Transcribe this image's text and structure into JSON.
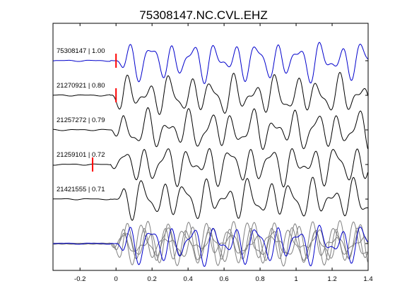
{
  "chart_data": {
    "type": "line",
    "title": "75308147.NC.CVL.EHZ",
    "xlim": [
      -0.35,
      1.4
    ],
    "xticks": [
      -0.2,
      0,
      0.2,
      0.4,
      0.6,
      0.8,
      1,
      1.2,
      1.4
    ],
    "xtick_labels": [
      "-0.2",
      "0",
      "0.2",
      "0.4",
      "0.6",
      "0.8",
      "1",
      "1.2",
      "1.4"
    ],
    "grid": false,
    "colors": {
      "reference": "#0000cc",
      "trace": "#000000",
      "overlay": "#808080",
      "pick": "#ff0000"
    },
    "traces": [
      {
        "label": "75308147 | 1.00",
        "color": "reference",
        "pick": 0.0
      },
      {
        "label": "21270921 | 0.80",
        "color": "trace",
        "pick": 0.0
      },
      {
        "label": "21257272 | 0.79",
        "color": "trace"
      },
      {
        "label": "21259101 | 0.72",
        "color": "trace",
        "pick": -0.13
      },
      {
        "label": "21421555 | 0.71",
        "color": "trace"
      }
    ],
    "stack": {
      "description": "overlay of all traces",
      "highlight": "reference"
    }
  }
}
